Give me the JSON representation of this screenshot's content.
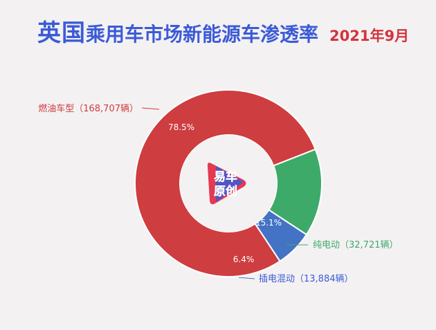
{
  "title": {
    "country": "英国",
    "main": "乘用车市场新能源车渗透率",
    "date": "2021年9月"
  },
  "logo": {
    "line1": "易车",
    "line2": "原创"
  },
  "colors": {
    "title": "#3b5bd6",
    "date": "#d2343a"
  },
  "chart_data": {
    "type": "pie",
    "donut": true,
    "slices": [
      {
        "name": "燃油车型（168,707辆）",
        "value": 168707,
        "percent_label": "78.5%",
        "color": "#ce3d3f",
        "label_color": "#ce3d3f"
      },
      {
        "name": "纯电动（32,721辆）",
        "value": 32721,
        "percent_label": "15.1%",
        "color": "#3daa6a",
        "label_color": "#3daa6a"
      },
      {
        "name": "插电混动（13,884辆）",
        "value": 13884,
        "percent_label": "6.4%",
        "color": "#4472c4",
        "label_color": "#3b5bd6"
      }
    ]
  }
}
